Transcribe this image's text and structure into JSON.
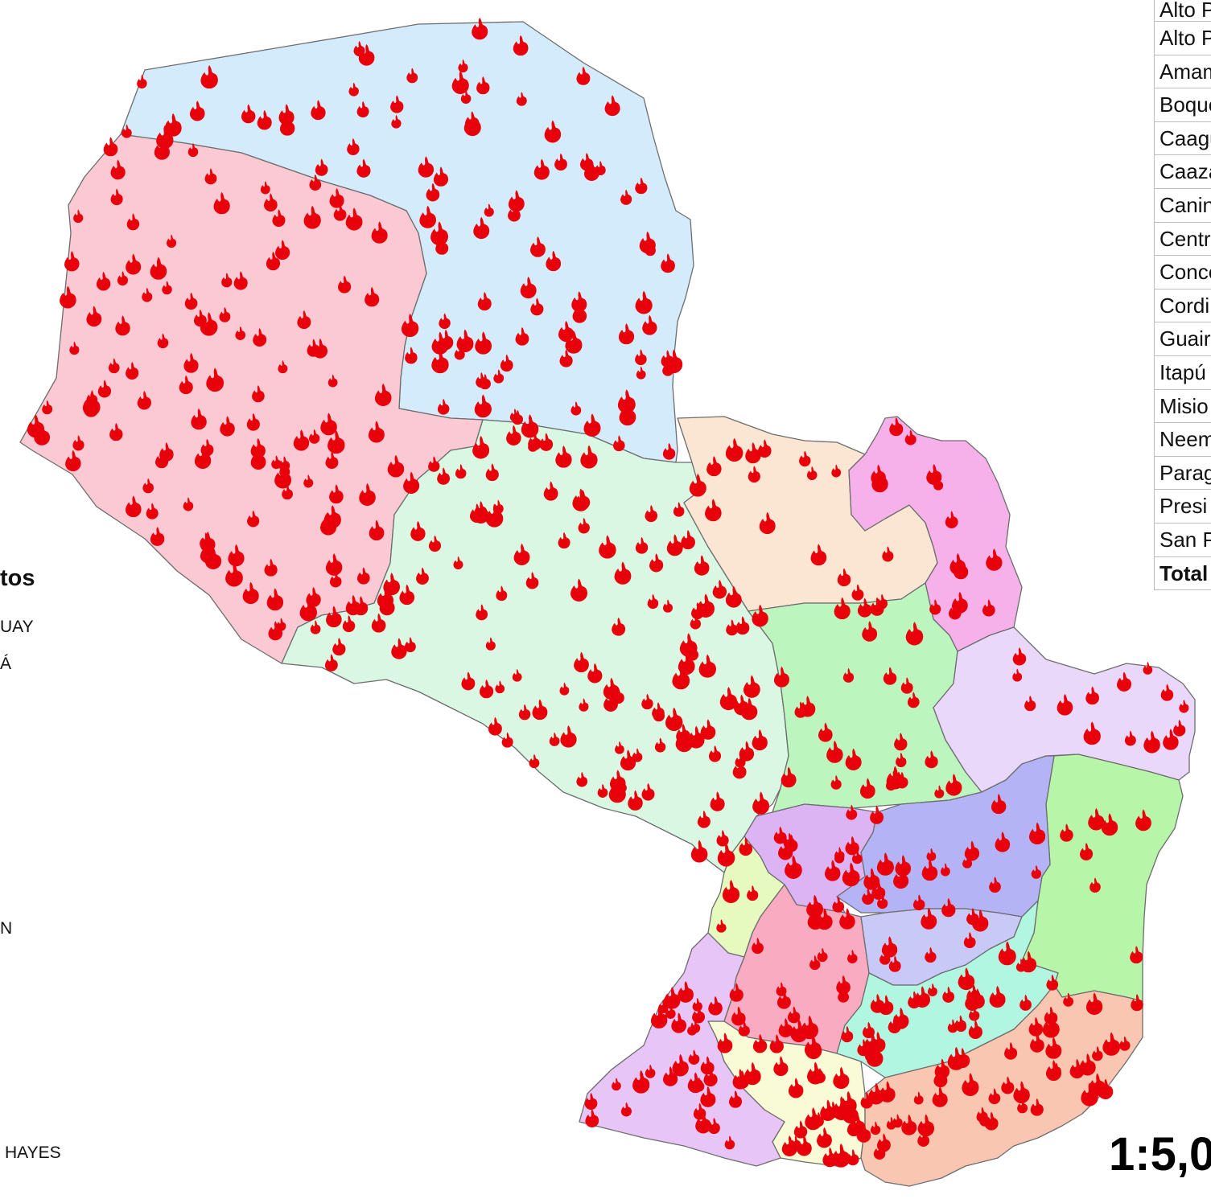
{
  "map": {
    "department_colors": {
      "alto_paraguay": "#d4ebfb",
      "boqueron": "#fbc9d3",
      "presidente_hayes": "#d9f7e3",
      "concepcion": "#fbe6d4",
      "amambay": "#f6b1ea",
      "san_pedro": "#bdf5bf",
      "canindeyu": "#ead8fa",
      "alto_parana": "#b7f5a8",
      "caaguazu": "#b4b3f6",
      "cordillera": "#dcb4f3",
      "central": "#f9abc1",
      "guaira": "#c9c9f7",
      "caazapa": "#b1f6e1",
      "paraguari": "#f9fbd6",
      "neembucu": "#e8c5f7",
      "itapua": "#f9c7b1",
      "asuncion": "#e6f9bf"
    },
    "fire_color": "#e8000b",
    "fire_icon": "flame-icon"
  },
  "legend": {
    "title": "tos",
    "items": [
      "UAY",
      "Á",
      "N",
      "HAYES"
    ]
  },
  "table": {
    "rows": [
      "Alto P",
      "Alto P",
      "Amam",
      "Boque",
      "Caagu",
      "Caaza",
      "Canin",
      "Centr",
      "Conce",
      "Cordi",
      "Guair",
      "Itapú",
      "Misio",
      "Neem",
      "Parag",
      "Presi",
      "San P",
      "Total"
    ]
  },
  "scale": {
    "text": "1:5,0"
  }
}
